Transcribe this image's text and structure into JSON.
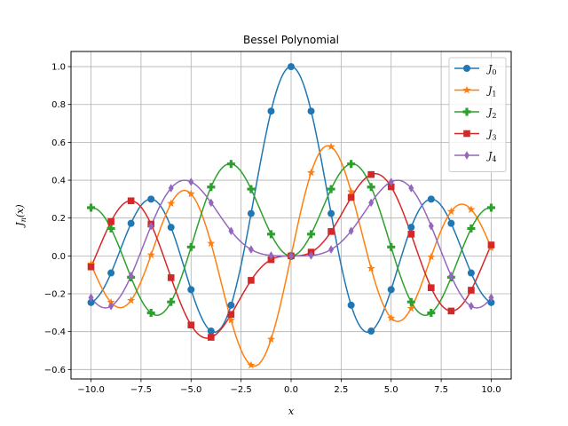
{
  "chart_data": {
    "type": "line",
    "title": "Bessel Polynomial",
    "xlabel": "x",
    "ylabel": "J_n(x)",
    "xlim": [
      -11,
      11
    ],
    "ylim": [
      -0.65,
      1.08
    ],
    "grid": true,
    "legend_position": "top-right",
    "x_ticks": [
      -10,
      -7.5,
      -5,
      -2.5,
      0,
      2.5,
      5,
      7.5,
      10
    ],
    "x_tick_labels": [
      "−10.0",
      "−7.5",
      "−5.0",
      "−2.5",
      "0.0",
      "2.5",
      "5.0",
      "7.5",
      "10.0"
    ],
    "y_ticks": [
      -0.6,
      -0.4,
      -0.2,
      0.0,
      0.2,
      0.4,
      0.6,
      0.8,
      1.0
    ],
    "y_tick_labels": [
      "−0.6",
      "−0.4",
      "−0.2",
      "0.0",
      "0.2",
      "0.4",
      "0.6",
      "0.8",
      "1.0"
    ],
    "marker_x": [
      -10,
      -9,
      -8,
      -7,
      -6,
      -5,
      -4,
      -3,
      -2,
      -1,
      0,
      1,
      2,
      3,
      4,
      5,
      6,
      7,
      8,
      9,
      10
    ],
    "series": [
      {
        "name": "J0",
        "name_main": "J",
        "name_sub": "0",
        "color": "#1f77b4",
        "marker": "circle",
        "markers": [
          -0.246,
          -0.09,
          0.172,
          0.3,
          0.151,
          -0.178,
          -0.397,
          -0.26,
          0.224,
          0.765,
          1.0,
          0.765,
          0.224,
          -0.26,
          -0.397,
          -0.178,
          0.151,
          0.3,
          0.172,
          -0.09,
          -0.246
        ]
      },
      {
        "name": "J1",
        "name_main": "J",
        "name_sub": "1",
        "color": "#ff7f0e",
        "marker": "star",
        "markers": [
          -0.043,
          -0.245,
          -0.235,
          0.005,
          0.277,
          0.328,
          0.066,
          -0.339,
          -0.577,
          -0.44,
          0.0,
          0.44,
          0.577,
          0.339,
          -0.066,
          -0.328,
          -0.277,
          -0.005,
          0.235,
          0.245,
          0.043
        ]
      },
      {
        "name": "J2",
        "name_main": "J",
        "name_sub": "2",
        "color": "#2ca02c",
        "marker": "plus",
        "markers": [
          0.255,
          0.145,
          -0.113,
          -0.301,
          -0.243,
          0.047,
          0.364,
          0.486,
          0.353,
          0.115,
          0.0,
          0.115,
          0.353,
          0.486,
          0.364,
          0.047,
          -0.243,
          -0.301,
          -0.113,
          0.145,
          0.255
        ]
      },
      {
        "name": "J3",
        "name_main": "J",
        "name_sub": "3",
        "color": "#d62728",
        "marker": "square",
        "markers": [
          -0.058,
          0.181,
          0.291,
          0.168,
          -0.115,
          -0.365,
          -0.43,
          -0.309,
          -0.129,
          -0.02,
          0.0,
          0.02,
          0.129,
          0.309,
          0.43,
          0.365,
          0.115,
          -0.168,
          -0.291,
          -0.181,
          0.058
        ]
      },
      {
        "name": "J4",
        "name_main": "J",
        "name_sub": "4",
        "color": "#9467bd",
        "marker": "diamond",
        "markers": [
          -0.22,
          -0.265,
          -0.105,
          0.158,
          0.358,
          0.391,
          0.281,
          0.132,
          0.034,
          0.002,
          0.0,
          0.002,
          0.034,
          0.132,
          0.281,
          0.391,
          0.358,
          0.158,
          -0.105,
          -0.265,
          -0.22
        ]
      }
    ]
  }
}
